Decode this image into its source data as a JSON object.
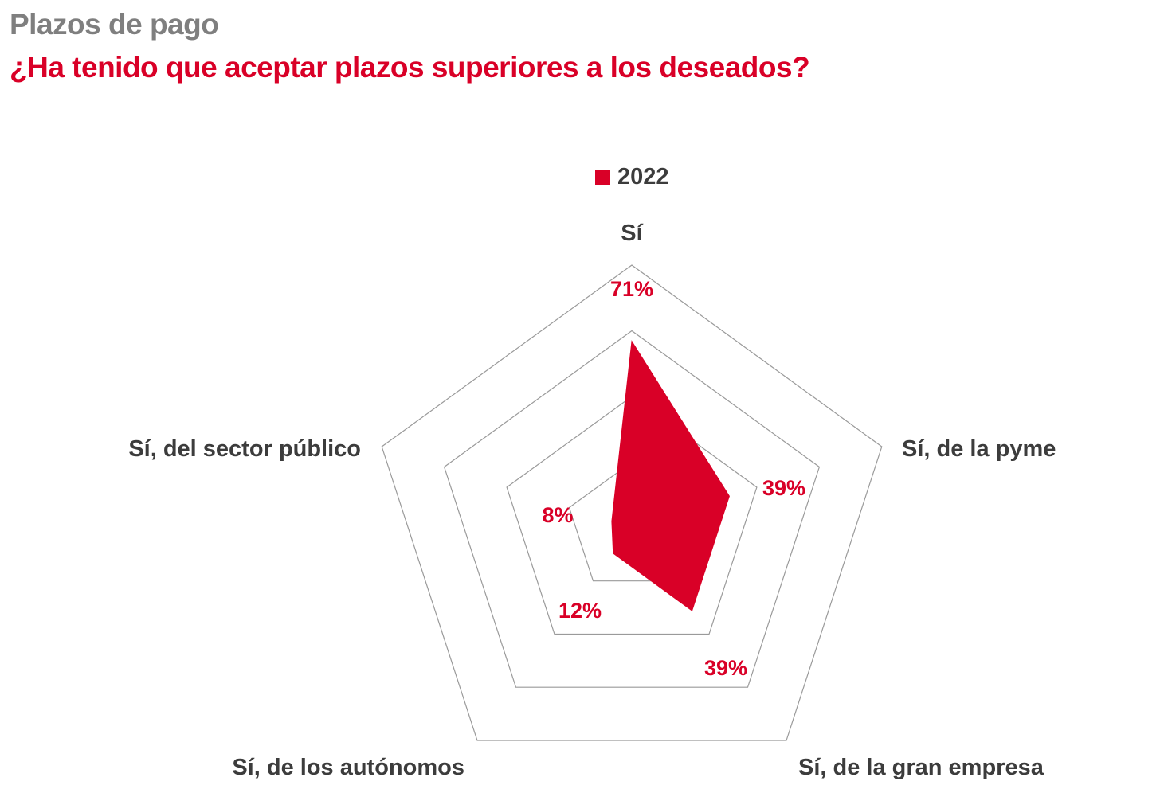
{
  "header": {
    "kicker": "Plazos de pago",
    "title": "¿Ha tenido que aceptar plazos superiores a los deseados?"
  },
  "colors": {
    "accent": "#d90027",
    "kicker": "#7f7f7f",
    "text": "#3c3c3c",
    "grid": "#9a9a9a"
  },
  "chart_data": {
    "type": "radar",
    "legend": {
      "position": "top"
    },
    "axes": [
      "Sí",
      "Sí, de la pyme",
      "Sí, de la gran empresa",
      "Sí, de los autónomos",
      "Sí, del sector público"
    ],
    "series": [
      {
        "name": "2022",
        "values": [
          71,
          39,
          39,
          12,
          8
        ],
        "labels": [
          "71%",
          "39%",
          "39%",
          "12%",
          "8%"
        ]
      }
    ],
    "rmax": 100,
    "grid_rings": [
      25,
      50,
      75,
      100
    ]
  }
}
